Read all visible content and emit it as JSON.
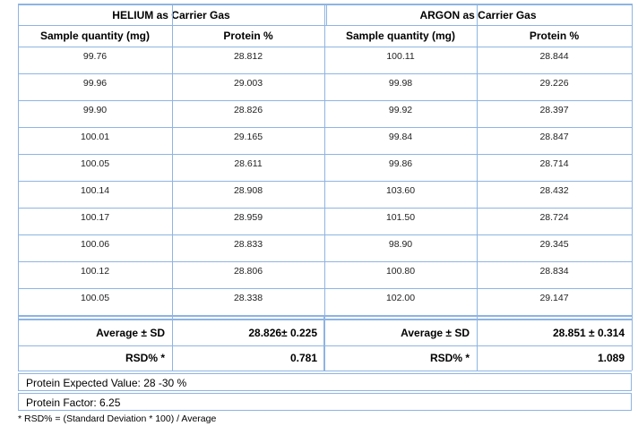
{
  "table": {
    "groups": [
      "HELIUM as Carrier Gas",
      "ARGON as Carrier Gas"
    ],
    "columns": [
      "Sample quantity (mg)",
      "Protein %",
      "Sample quantity (mg)",
      "Protein %"
    ],
    "rows": [
      [
        "99.76",
        "28.812",
        "100.11",
        "28.844"
      ],
      [
        "99.96",
        "29.003",
        "99.98",
        "29.226"
      ],
      [
        "99.90",
        "28.826",
        "99.92",
        "28.397"
      ],
      [
        "100.01",
        "29.165",
        "99.84",
        "28.847"
      ],
      [
        "100.05",
        "28.611",
        "99.86",
        "28.714"
      ],
      [
        "100.14",
        "28.908",
        "103.60",
        "28.432"
      ],
      [
        "100.17",
        "28.959",
        "101.50",
        "28.724"
      ],
      [
        "100.06",
        "28.833",
        "98.90",
        "29.345"
      ],
      [
        "100.12",
        "28.806",
        "100.80",
        "28.834"
      ],
      [
        "100.05",
        "28.338",
        "102.00",
        "29.147"
      ]
    ],
    "summary": [
      [
        "Average ± SD",
        "28.826± 0.225",
        "Average ± SD",
        "28.851 ± 0.314"
      ],
      [
        "RSD% *",
        "0.781",
        "RSD% *",
        "1.089"
      ]
    ],
    "notes": [
      "Protein Expected Value: 28 -30 %",
      "Protein Factor: 6.25"
    ],
    "footnote": "* RSD% = (Standard Deviation * 100) / Average"
  }
}
